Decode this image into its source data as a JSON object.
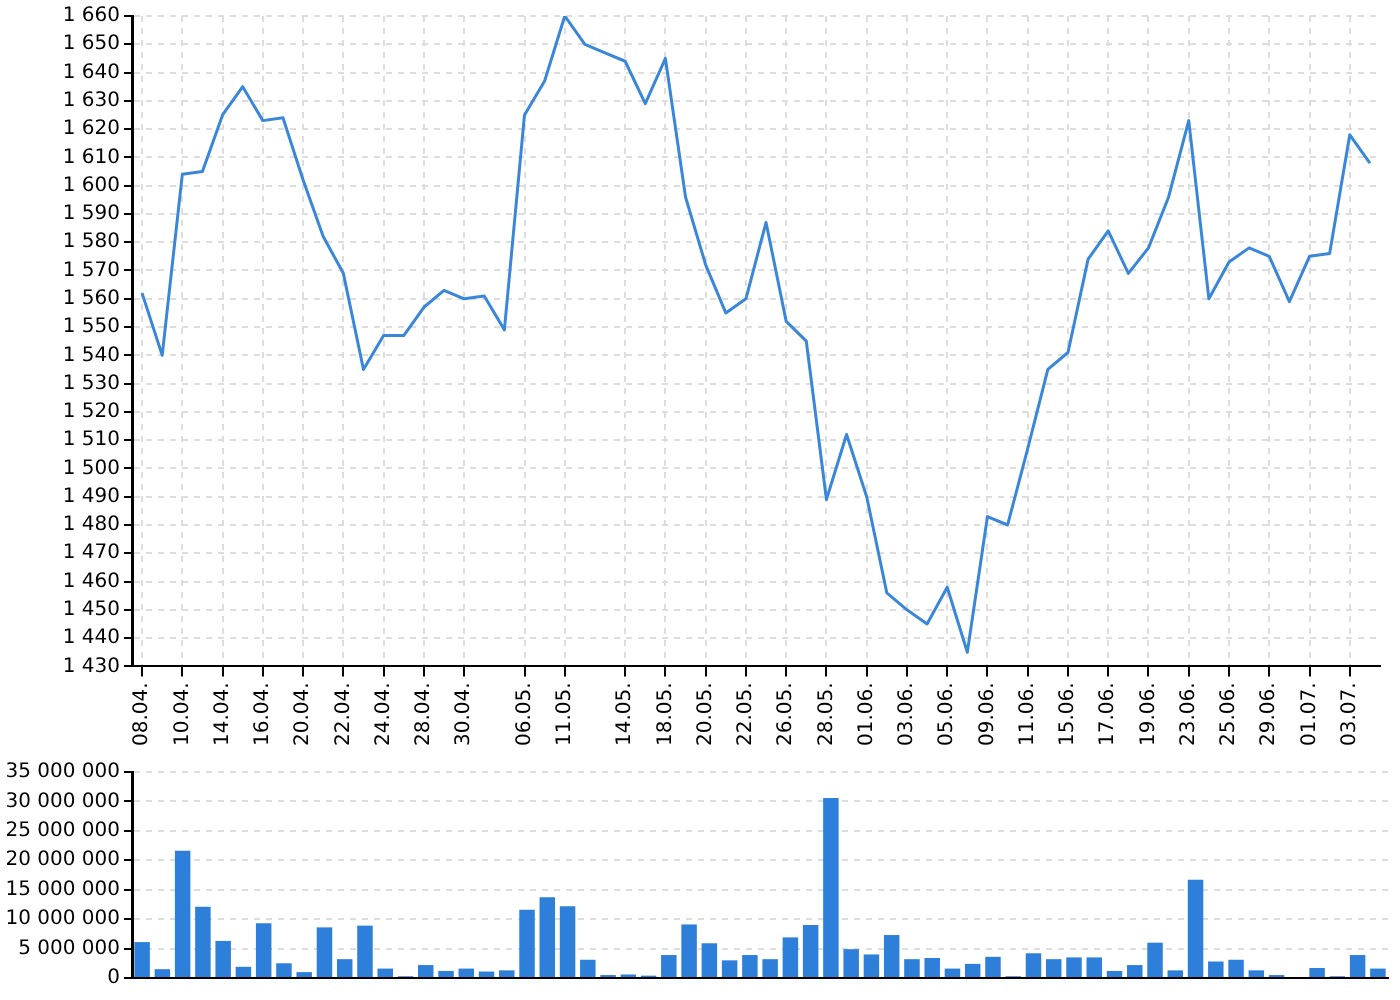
{
  "chart_data": [
    {
      "type": "line",
      "categories": [
        "08.04.",
        null,
        "10.04.",
        null,
        "14.04.",
        null,
        "16.04.",
        null,
        "20.04.",
        null,
        "22.04.",
        null,
        "24.04.",
        null,
        "28.04.",
        null,
        "30.04.",
        null,
        null,
        "06.05.",
        null,
        "11.05.",
        null,
        null,
        "14.05.",
        null,
        "18.05.",
        null,
        "20.05.",
        null,
        "22.05.",
        null,
        "26.05.",
        null,
        "28.05.",
        null,
        "01.06.",
        null,
        "03.06.",
        null,
        "05.06.",
        null,
        "09.06.",
        null,
        "11.06.",
        null,
        "15.06.",
        null,
        "17.06.",
        null,
        "19.06.",
        null,
        "23.06.",
        null,
        "25.06.",
        null,
        "29.06.",
        null,
        "01.07.",
        null,
        "03.07.",
        null
      ],
      "values": [
        1562,
        1540,
        1604,
        1605,
        1625,
        1635,
        1623,
        1624,
        1602,
        1582,
        1569,
        1535,
        1547,
        1547,
        1557,
        1563,
        1560,
        1561,
        1549,
        1625,
        1637,
        1660,
        1650,
        1647,
        1644,
        1629,
        1645,
        1596,
        1572,
        1555,
        1560,
        1587,
        1552,
        1545,
        1489,
        1512,
        1490,
        1456,
        1450,
        1445,
        1458,
        1435,
        1483,
        1480,
        1507,
        1535,
        1541,
        1574,
        1584,
        1569,
        1578,
        1596,
        1623,
        1560,
        1573,
        1578,
        1575,
        1559,
        1575,
        1576,
        1618,
        1608
      ],
      "color": "#3a87d9",
      "marker": "none",
      "grid": true,
      "ylim": [
        1430,
        1660
      ],
      "yticks": [
        {
          "value": 1430,
          "label": "1 430"
        },
        {
          "value": 1440,
          "label": "1 440"
        },
        {
          "value": 1450,
          "label": "1 450"
        },
        {
          "value": 1460,
          "label": "1 460"
        },
        {
          "value": 1470,
          "label": "1 470"
        },
        {
          "value": 1480,
          "label": "1 480"
        },
        {
          "value": 1490,
          "label": "1 490"
        },
        {
          "value": 1500,
          "label": "1 500"
        },
        {
          "value": 1510,
          "label": "1 510"
        },
        {
          "value": 1520,
          "label": "1 520"
        },
        {
          "value": 1530,
          "label": "1 530"
        },
        {
          "value": 1540,
          "label": "1 540"
        },
        {
          "value": 1550,
          "label": "1 550"
        },
        {
          "value": 1560,
          "label": "1 560"
        },
        {
          "value": 1570,
          "label": "1 570"
        },
        {
          "value": 1580,
          "label": "1 580"
        },
        {
          "value": 1590,
          "label": "1 590"
        },
        {
          "value": 1600,
          "label": "1 600"
        },
        {
          "value": 1610,
          "label": "1 610"
        },
        {
          "value": 1620,
          "label": "1 620"
        },
        {
          "value": 1630,
          "label": "1 630"
        },
        {
          "value": 1640,
          "label": "1 640"
        },
        {
          "value": 1650,
          "label": "1 650"
        },
        {
          "value": 1660,
          "label": "1 660"
        }
      ]
    },
    {
      "type": "bar",
      "categories": [
        null,
        null,
        null,
        null,
        null,
        null,
        null,
        null,
        null,
        null,
        null,
        null,
        null,
        null,
        null,
        null,
        null,
        null,
        null,
        null,
        null,
        null,
        null,
        null,
        null,
        null,
        null,
        null,
        null,
        null,
        null,
        null,
        null,
        null,
        null,
        null,
        null,
        null,
        null,
        null,
        null,
        null,
        null,
        null,
        null,
        null,
        null,
        null,
        null,
        null,
        null,
        null,
        null,
        null,
        null,
        null,
        null,
        null,
        null,
        null,
        null,
        null
      ],
      "values": [
        6100000,
        1500000,
        21600000,
        12100000,
        6300000,
        1900000,
        9300000,
        2500000,
        1000000,
        8600000,
        3200000,
        8900000,
        1600000,
        300000,
        2200000,
        1200000,
        1600000,
        1100000,
        1300000,
        11600000,
        13700000,
        12200000,
        3100000,
        500000,
        600000,
        400000,
        3900000,
        9100000,
        5900000,
        3000000,
        3900000,
        3200000,
        6900000,
        9000000,
        30600000,
        4900000,
        4000000,
        7300000,
        3200000,
        3400000,
        1600000,
        2400000,
        3600000,
        300000,
        4200000,
        3200000,
        3500000,
        3500000,
        1200000,
        2200000,
        6000000,
        1300000,
        16700000,
        2800000,
        3100000,
        1300000,
        500000,
        null,
        1700000,
        300000,
        3900000,
        1600000
      ],
      "color": "#2e7fd9",
      "grid": true,
      "tick_labels": "y",
      "ylim": [
        0,
        35000000
      ],
      "yticks": [
        {
          "value": 0,
          "label": "0"
        },
        {
          "value": 5000000,
          "label": "5 000 000"
        },
        {
          "value": 10000000,
          "label": "10 000 000"
        },
        {
          "value": 15000000,
          "label": "15 000 000"
        },
        {
          "value": 20000000,
          "label": "20 000 000"
        },
        {
          "value": 25000000,
          "label": "25 000 000"
        },
        {
          "value": 30000000,
          "label": "30 000 000"
        },
        {
          "value": 35000000,
          "label": "35 000 000"
        }
      ]
    }
  ]
}
